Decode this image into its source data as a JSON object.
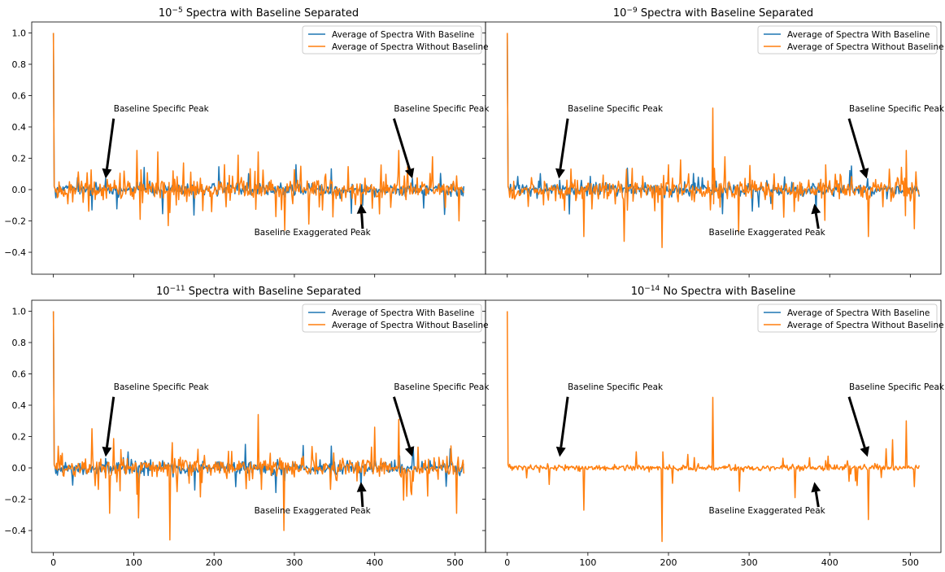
{
  "figure": {
    "colors": {
      "with": "#1f77b4",
      "without": "#ff7f0e",
      "arrow": "#000000"
    },
    "xticks": [
      0,
      100,
      200,
      300,
      400,
      500
    ],
    "yticks": [
      -0.4,
      -0.2,
      0.0,
      0.2,
      0.4,
      0.6,
      0.8,
      1.0
    ],
    "xlim": [
      -27,
      538
    ],
    "ylim": [
      -0.54,
      1.07
    ],
    "legend": {
      "with_label": "Average of Spectra With Baseline",
      "without_label": "Average of Spectra Without Baseline",
      "location": "top-right"
    }
  },
  "chart_data": [
    {
      "type": "line",
      "title": "10^-5 Spectra with Baseline Separated",
      "title_parts": {
        "base": "10",
        "exp": "−5",
        "rest": " Spectra with Baseline Separated"
      },
      "has_with_series": true,
      "series": [
        {
          "name": "Average of Spectra With Baseline",
          "n_points": 512,
          "y_first": 1.0,
          "notable_points": [
            {
              "x": 48,
              "y": -0.13
            },
            {
              "x": 65,
              "y": 0.07
            },
            {
              "x": 385,
              "y": -0.1
            },
            {
              "x": 447,
              "y": 0.07
            }
          ]
        },
        {
          "name": "Average of Spectra Without Baseline",
          "n_points": 512,
          "y_first": 1.0,
          "notable_points": [
            {
              "x": 104,
              "y": 0.25
            },
            {
              "x": 130,
              "y": 0.24
            },
            {
              "x": 108,
              "y": -0.19
            },
            {
              "x": 143,
              "y": -0.23
            },
            {
              "x": 230,
              "y": 0.22
            },
            {
              "x": 255,
              "y": 0.24
            },
            {
              "x": 288,
              "y": -0.26
            },
            {
              "x": 318,
              "y": -0.22
            },
            {
              "x": 430,
              "y": 0.25
            },
            {
              "x": 472,
              "y": 0.21
            },
            {
              "x": 505,
              "y": -0.2
            }
          ]
        }
      ],
      "annotations": [
        {
          "text": "Baseline Specific Peak",
          "text_xy": [
            75,
            0.5
          ],
          "arrow_to": [
            65,
            0.07
          ]
        },
        {
          "text": "Baseline Specific Peak",
          "text_xy": [
            424,
            0.5
          ],
          "arrow_to": [
            447,
            0.07
          ]
        },
        {
          "text": "Baseline Exaggerated Peak",
          "text_xy": [
            250,
            -0.29
          ],
          "arrow_to": [
            383,
            -0.09
          ],
          "arrow_from": [
            385,
            -0.25
          ]
        }
      ]
    },
    {
      "type": "line",
      "title": "10^-9 Spectra with Baseline Separated",
      "title_parts": {
        "base": "10",
        "exp": "−9",
        "rest": " Spectra with Baseline Separated"
      },
      "has_with_series": true,
      "series": [
        {
          "name": "Average of Spectra With Baseline",
          "n_points": 512,
          "y_first": 1.0,
          "notable_points": [
            {
              "x": 65,
              "y": 0.06
            },
            {
              "x": 383,
              "y": -0.16
            },
            {
              "x": 447,
              "y": 0.07
            }
          ]
        },
        {
          "name": "Average of Spectra Without Baseline",
          "n_points": 512,
          "y_first": 1.0,
          "notable_points": [
            {
              "x": 255,
              "y": 0.52
            },
            {
              "x": 95,
              "y": -0.3
            },
            {
              "x": 145,
              "y": -0.33
            },
            {
              "x": 192,
              "y": -0.37
            },
            {
              "x": 215,
              "y": 0.19
            },
            {
              "x": 270,
              "y": 0.21
            },
            {
              "x": 287,
              "y": -0.27
            },
            {
              "x": 448,
              "y": -0.3
            },
            {
              "x": 495,
              "y": 0.25
            },
            {
              "x": 505,
              "y": -0.25
            }
          ]
        }
      ],
      "annotations": [
        {
          "text": "Baseline Specific Peak",
          "text_xy": [
            75,
            0.5
          ],
          "arrow_to": [
            64,
            0.07
          ]
        },
        {
          "text": "Baseline Specific Peak",
          "text_xy": [
            424,
            0.5
          ],
          "arrow_to": [
            446,
            0.07
          ]
        },
        {
          "text": "Baseline Exaggerated Peak",
          "text_xy": [
            250,
            -0.29
          ],
          "arrow_to": [
            381,
            -0.09
          ],
          "arrow_from": [
            386,
            -0.25
          ]
        }
      ]
    },
    {
      "type": "line",
      "title": "10^-11 Spectra with Baseline Separated",
      "title_parts": {
        "base": "10",
        "exp": "−11",
        "rest": " Spectra with Baseline Separated"
      },
      "has_with_series": true,
      "series": [
        {
          "name": "Average of Spectra With Baseline",
          "n_points": 512,
          "y_first": 1.0,
          "notable_points": [
            {
              "x": 65,
              "y": 0.06
            },
            {
              "x": 383,
              "y": -0.13
            },
            {
              "x": 447,
              "y": 0.06
            }
          ]
        },
        {
          "name": "Average of Spectra Without Baseline",
          "n_points": 512,
          "y_first": 1.0,
          "notable_points": [
            {
              "x": 145,
              "y": -0.46
            },
            {
              "x": 287,
              "y": -0.4
            },
            {
              "x": 255,
              "y": 0.34
            },
            {
              "x": 430,
              "y": 0.31
            },
            {
              "x": 70,
              "y": -0.29
            },
            {
              "x": 106,
              "y": -0.32
            },
            {
              "x": 502,
              "y": -0.29
            },
            {
              "x": 48,
              "y": 0.25
            },
            {
              "x": 400,
              "y": 0.26
            }
          ]
        }
      ],
      "annotations": [
        {
          "text": "Baseline Specific Peak",
          "text_xy": [
            75,
            0.5
          ],
          "arrow_to": [
            65,
            0.07
          ]
        },
        {
          "text": "Baseline Specific Peak",
          "text_xy": [
            424,
            0.5
          ],
          "arrow_to": [
            447,
            0.07
          ]
        },
        {
          "text": "Baseline Exaggerated Peak",
          "text_xy": [
            250,
            -0.29
          ],
          "arrow_to": [
            383,
            -0.09
          ],
          "arrow_from": [
            385,
            -0.25
          ]
        }
      ]
    },
    {
      "type": "line",
      "title": "10^-14 No Spectra with Baseline",
      "title_parts": {
        "base": "10",
        "exp": "−14",
        "rest": " No Spectra with Baseline"
      },
      "has_with_series": false,
      "series": [
        {
          "name": "Average of Spectra With Baseline",
          "n_points": 512,
          "y_first": 1.0,
          "notable_points": []
        },
        {
          "name": "Average of Spectra Without Baseline",
          "n_points": 512,
          "y_first": 1.0,
          "notable_points": [
            {
              "x": 192,
              "y": -0.47
            },
            {
              "x": 255,
              "y": 0.45
            },
            {
              "x": 448,
              "y": -0.33
            },
            {
              "x": 95,
              "y": -0.27
            },
            {
              "x": 288,
              "y": -0.15
            },
            {
              "x": 357,
              "y": -0.19
            },
            {
              "x": 495,
              "y": 0.3
            },
            {
              "x": 478,
              "y": 0.18
            },
            {
              "x": 505,
              "y": -0.12
            }
          ]
        }
      ],
      "annotations": [
        {
          "text": "Baseline Specific Peak",
          "text_xy": [
            75,
            0.5
          ],
          "arrow_to": [
            65,
            0.07
          ]
        },
        {
          "text": "Baseline Specific Peak",
          "text_xy": [
            424,
            0.5
          ],
          "arrow_to": [
            447,
            0.07
          ]
        },
        {
          "text": "Baseline Exaggerated Peak",
          "text_xy": [
            250,
            -0.29
          ],
          "arrow_to": [
            381,
            -0.09
          ],
          "arrow_from": [
            386,
            -0.25
          ]
        }
      ]
    }
  ]
}
